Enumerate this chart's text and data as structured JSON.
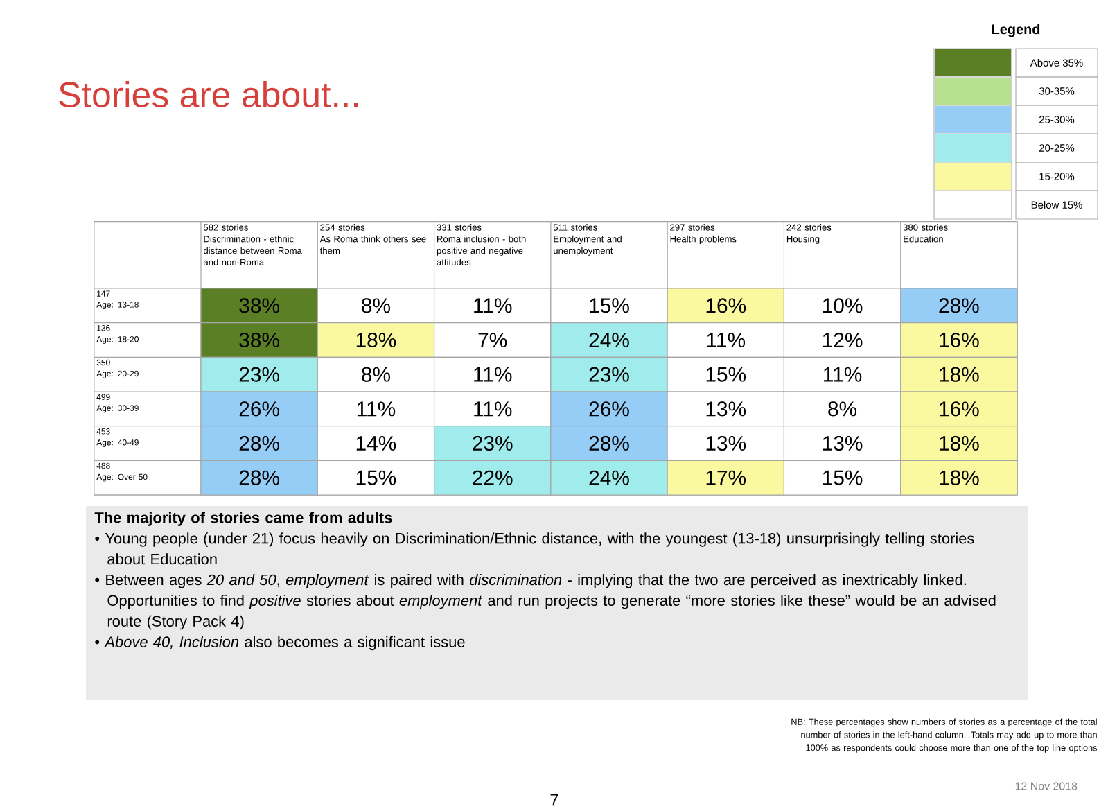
{
  "chart_data": {
    "type": "heatmap",
    "title": "Stories are about...",
    "categories": [
      "582 stories\nDiscrimination - ethnic distance between Roma and non-Roma",
      "254 stories\nAs Roma think others see them",
      "331 stories\nRoma inclusion - both positive and negative attitudes",
      "511 stories\nEmployment and unemployment",
      "297 stories\nHealth problems",
      "242 stories\nHousing",
      "380 stories\nEducation"
    ],
    "y_categories": [
      "147\nAge: 13-18",
      "136\nAge: 18-20",
      "350\nAge: 20-29",
      "499\nAge: 30-39",
      "453\nAge: 40-49",
      "488\nAge: Over 50"
    ],
    "cells": [
      [
        38,
        8,
        11,
        15,
        16,
        10,
        28
      ],
      [
        38,
        18,
        7,
        24,
        11,
        12,
        16
      ],
      [
        23,
        8,
        11,
        23,
        15,
        11,
        18
      ],
      [
        26,
        11,
        11,
        26,
        13,
        8,
        16
      ],
      [
        28,
        14,
        23,
        28,
        13,
        13,
        18
      ],
      [
        28,
        15,
        22,
        24,
        17,
        15,
        18
      ]
    ],
    "cell_labels": [
      [
        "38%",
        "8%",
        "11%",
        "15%",
        "16%",
        "10%",
        "28%"
      ],
      [
        "38%",
        "18%",
        "7%",
        "24%",
        "11%",
        "12%",
        "16%"
      ],
      [
        "23%",
        "8%",
        "11%",
        "23%",
        "15%",
        "11%",
        "18%"
      ],
      [
        "26%",
        "11%",
        "11%",
        "26%",
        "13%",
        "8%",
        "16%"
      ],
      [
        "28%",
        "14%",
        "23%",
        "28%",
        "13%",
        "13%",
        "18%"
      ],
      [
        "28%",
        "15%",
        "22%",
        "24%",
        "17%",
        "15%",
        "18%"
      ]
    ],
    "colors": [
      "#ffffff",
      "#fbf9a0",
      "#a0ecec",
      "#95cdf7",
      "#b7e08f",
      "#5a7f24"
    ],
    "clim": [
      10,
      40
    ],
    "cticks": [
      {
        "value": 12.5,
        "label": "Below 15%"
      },
      {
        "value": 17.5,
        "label": "15-20%"
      },
      {
        "value": 22.5,
        "label": "20-25%"
      },
      {
        "value": 27.5,
        "label": "25-30%"
      },
      {
        "value": 32.5,
        "label": "30-35%"
      },
      {
        "value": 37.5,
        "label": "Above 35%"
      }
    ],
    "legend_title": "Legend",
    "annotations": [
      "The majority of stories came from adults",
      "• Young people (under 21) focus heavily on Discrimination/Ethnic distance, with the youngest (13-18) unsurprisingly telling stories about Education",
      "• Between ages *20 and 50*, *employment* is paired with *discrimination* - implying that the two are perceived as inextricably linked. Opportunities to find *positive* stories about *employment* and run projects to generate “more stories like these” would be an advised route (Story Pack 4)",
      "• *Above 40, Inclusion* also becomes a significant issue",
      "NB: These percentages show numbers of stories as a percentage of the total number of stories in the left-hand column.  Totals may add up to more than 100% as respondents could choose more than one of the top line options",
      "12 Nov 2018",
      "7"
    ]
  }
}
